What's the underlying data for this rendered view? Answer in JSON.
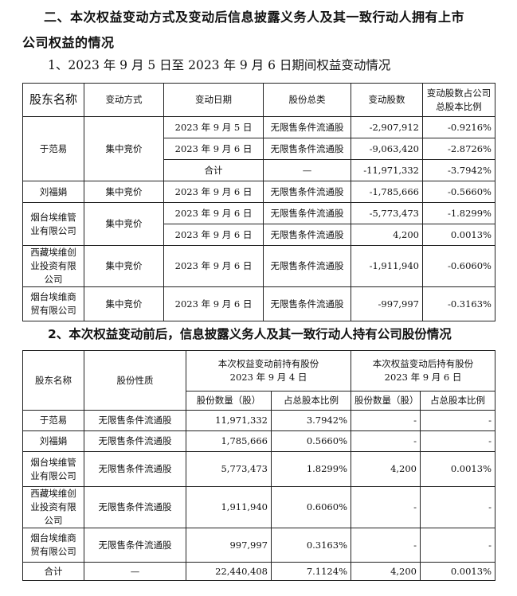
{
  "heading": {
    "line1": "二、本次权益变动方式及变动后信息披露义务人及其一致行动人拥有上市",
    "line2": "公司权益的情况"
  },
  "section1": {
    "title": "1、2023 年 9 月 5 日至 2023 年 9 月 6 日期间权益变动情况",
    "headers": [
      "股东名称",
      "变动方式",
      "变动日期",
      "股份总类",
      "变动股数",
      "变动股数占公司总股本比例"
    ],
    "rows": [
      {
        "name": "于范易",
        "method": "集中竞价",
        "date": "2023 年 9 月 5 日",
        "type": "无限售条件流通股",
        "shares": "-2,907,912",
        "ratio": "-0.9216%"
      },
      {
        "name": "于范易",
        "method": "集中竞价",
        "date": "2023 年 9 月 6 日",
        "type": "无限售条件流通股",
        "shares": "-9,063,420",
        "ratio": "-2.8726%"
      },
      {
        "name": "于范易",
        "method": "集中竞价",
        "date": "合计",
        "type": "—",
        "shares": "-11,971,332",
        "ratio": "-3.7942%"
      },
      {
        "name": "刘福娟",
        "method": "集中竞价",
        "date": "2023 年 9 月 6 日",
        "type": "无限售条件流通股",
        "shares": "-1,785,666",
        "ratio": "-0.5660%"
      },
      {
        "name": "烟台埃维管业有限公司",
        "method": "集中竞价",
        "date": "2023 年 9 月 6 日",
        "type": "无限售条件流通股",
        "shares": "-5,773,473",
        "ratio": "-1.8299%"
      },
      {
        "name": "烟台埃维管业有限公司",
        "method": "集中竞价",
        "date": "2023 年 9 月 6 日",
        "type": "无限售条件流通股",
        "shares": "4,200",
        "ratio": "0.0013%"
      },
      {
        "name": "西藏埃维创业投资有限公司",
        "method": "集中竞价",
        "date": "2023 年 9 月 6 日",
        "type": "无限售条件流通股",
        "shares": "-1,911,940",
        "ratio": "-0.6060%"
      },
      {
        "name": "烟台埃维商贸有限公司",
        "method": "集中竞价",
        "date": "2023 年 9 月 6 日",
        "type": "无限售条件流通股",
        "shares": "-997,997",
        "ratio": "-0.3163%"
      }
    ]
  },
  "section2": {
    "title": "2、本次权益变动前后，信息披露义务人及其一致行动人持有公司股份情况",
    "headers": {
      "name": "股东名称",
      "nature": "股份性质",
      "before": "本次权益变动前持有股份",
      "before_date": "2023 年 9 月 4 日",
      "after": "本次权益变动后持有股份",
      "after_date": "2023 年 9 月 6 日",
      "qty": "股份数量（股）",
      "ratio": "占总股本比例"
    },
    "rows": [
      {
        "name": "于范易",
        "nature": "无限售条件流通股",
        "bq": "11,971,332",
        "br": "3.7942%",
        "aq": "-",
        "ar": "-"
      },
      {
        "name": "刘福娟",
        "nature": "无限售条件流通股",
        "bq": "1,785,666",
        "br": "0.5660%",
        "aq": "-",
        "ar": "-"
      },
      {
        "name": "烟台埃维管业有限公司",
        "nature": "无限售条件流通股",
        "bq": "5,773,473",
        "br": "1.8299%",
        "aq": "4,200",
        "ar": "0.0013%"
      },
      {
        "name": "西藏埃维创业投资有限公司",
        "nature": "无限售条件流通股",
        "bq": "1,911,940",
        "br": "0.6060%",
        "aq": "-",
        "ar": "-"
      },
      {
        "name": "烟台埃维商贸有限公司",
        "nature": "无限售条件流通股",
        "bq": "997,997",
        "br": "0.3163%",
        "aq": "-",
        "ar": "-"
      },
      {
        "name": "合计",
        "nature": "—",
        "bq": "22,440,408",
        "br": "7.1124%",
        "aq": "4,200",
        "ar": "0.0013%"
      }
    ]
  }
}
